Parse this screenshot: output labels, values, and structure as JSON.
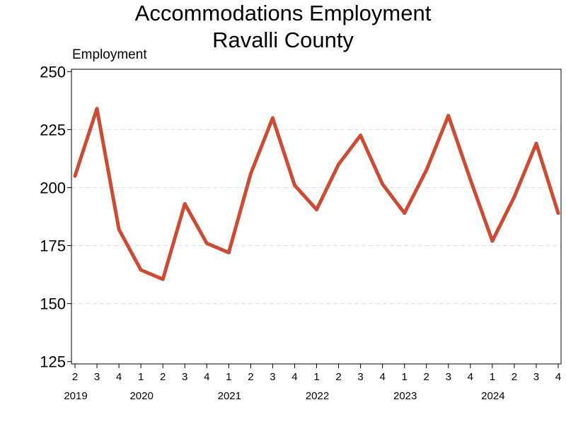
{
  "chart_data": {
    "type": "line",
    "title": [
      "Accommodations Employment",
      "Ravalli County"
    ],
    "ylabel": "Employment",
    "xlabel": "",
    "ylim": [
      124,
      251
    ],
    "yticks": [
      125,
      150,
      175,
      200,
      225,
      250
    ],
    "grid": "horizontal dashed",
    "legend": "none",
    "line_color": "#cd4a33",
    "x": [
      {
        "quarter": "2",
        "year": "2019"
      },
      {
        "quarter": "3",
        "year": "2019"
      },
      {
        "quarter": "4",
        "year": "2019"
      },
      {
        "quarter": "1",
        "year": "2020"
      },
      {
        "quarter": "2",
        "year": "2020"
      },
      {
        "quarter": "3",
        "year": "2020"
      },
      {
        "quarter": "4",
        "year": "2020"
      },
      {
        "quarter": "1",
        "year": "2021"
      },
      {
        "quarter": "2",
        "year": "2021"
      },
      {
        "quarter": "3",
        "year": "2021"
      },
      {
        "quarter": "4",
        "year": "2021"
      },
      {
        "quarter": "1",
        "year": "2022"
      },
      {
        "quarter": "2",
        "year": "2022"
      },
      {
        "quarter": "3",
        "year": "2022"
      },
      {
        "quarter": "4",
        "year": "2022"
      },
      {
        "quarter": "1",
        "year": "2023"
      },
      {
        "quarter": "2",
        "year": "2023"
      },
      {
        "quarter": "3",
        "year": "2023"
      },
      {
        "quarter": "4",
        "year": "2023"
      },
      {
        "quarter": "1",
        "year": "2024"
      },
      {
        "quarter": "2",
        "year": "2024"
      },
      {
        "quarter": "3",
        "year": "2024"
      },
      {
        "quarter": "4",
        "year": "2024"
      }
    ],
    "year_labels": [
      "2019",
      "2020",
      "2021",
      "2022",
      "2023",
      "2024"
    ],
    "values": [
      205,
      234,
      182,
      164.5,
      160.5,
      193,
      176,
      172,
      206,
      230,
      201,
      190.5,
      210,
      222.5,
      201.5,
      189,
      207.5,
      231,
      203.5,
      177,
      196,
      219,
      189
    ]
  }
}
